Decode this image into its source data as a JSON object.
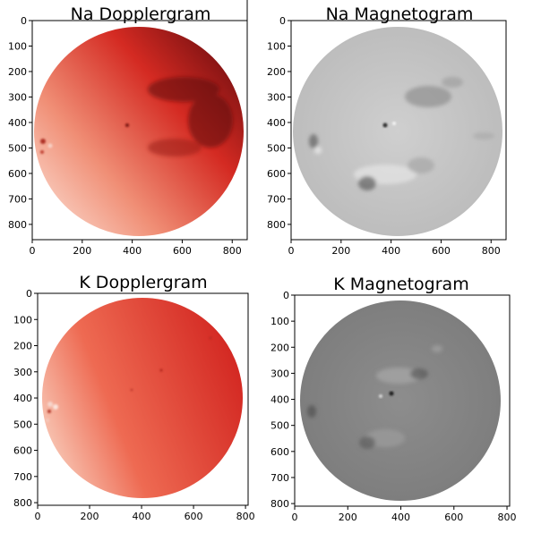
{
  "chart_data": [
    {
      "type": "heatmap",
      "title": "Na Dopplergram",
      "colormap": "reds",
      "xlim": [
        0,
        860
      ],
      "ylim": [
        860,
        0
      ],
      "xticks": [
        0,
        200,
        400,
        600,
        800
      ],
      "yticks": [
        0,
        100,
        200,
        300,
        400,
        500,
        600,
        700,
        800
      ],
      "disk": {
        "center_x": 430,
        "center_y": 430,
        "radius": 410
      }
    },
    {
      "type": "heatmap",
      "title": "Na Magnetogram",
      "colormap": "gray",
      "xlim": [
        0,
        860
      ],
      "ylim": [
        860,
        0
      ],
      "xticks": [
        0,
        200,
        400,
        600,
        800
      ],
      "yticks": [
        0,
        100,
        200,
        300,
        400,
        500,
        600,
        700,
        800
      ],
      "disk": {
        "center_x": 430,
        "center_y": 430,
        "radius": 410
      }
    },
    {
      "type": "heatmap",
      "title": "K Dopplergram",
      "colormap": "reds",
      "xlim": [
        0,
        810
      ],
      "ylim": [
        810,
        0
      ],
      "xticks": [
        0,
        200,
        400,
        600,
        800
      ],
      "yticks": [
        0,
        100,
        200,
        300,
        400,
        500,
        600,
        700,
        800
      ],
      "disk": {
        "center_x": 400,
        "center_y": 400,
        "radius": 390
      }
    },
    {
      "type": "heatmap",
      "title": "K Magnetogram",
      "colormap": "gray",
      "xlim": [
        0,
        810
      ],
      "ylim": [
        810,
        0
      ],
      "xticks": [
        0,
        200,
        400,
        600,
        800
      ],
      "yticks": [
        0,
        100,
        200,
        300,
        400,
        500,
        600,
        700,
        800
      ],
      "disk": {
        "center_x": 400,
        "center_y": 400,
        "radius": 390
      }
    }
  ]
}
